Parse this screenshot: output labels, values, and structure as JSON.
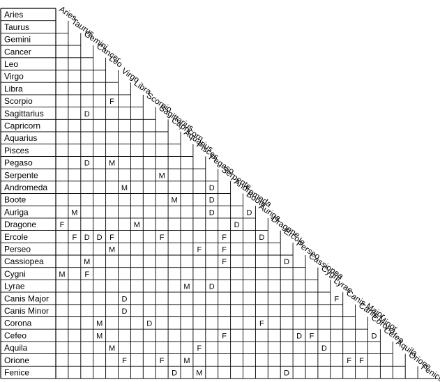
{
  "constellations": [
    "Aries",
    "Taurus",
    "Gemini",
    "Cancer",
    "Leo",
    "Virgo",
    "Libra",
    "Scorpio",
    "Sagittarius",
    "Capricorn",
    "Aquarius",
    "Pisces",
    "Pegaso",
    "Serpente",
    "Andromeda",
    "Boote",
    "Auriga",
    "Dragone",
    "Ercole",
    "Perseo",
    "Cassiopea",
    "Cygni",
    "Lyrae",
    "Canis Major",
    "Canis Minor",
    "Corona",
    "Cefeo",
    "Aquila",
    "Orione",
    "Fenice"
  ],
  "marks": [
    {
      "row": "Scorpio",
      "col": "Leo",
      "value": "F"
    },
    {
      "row": "Sagittarius",
      "col": "Gemini",
      "value": "D"
    },
    {
      "row": "Pegaso",
      "col": "Gemini",
      "value": "D"
    },
    {
      "row": "Pegaso",
      "col": "Leo",
      "value": "M"
    },
    {
      "row": "Serpente",
      "col": "Sagittarius",
      "value": "M"
    },
    {
      "row": "Andromeda",
      "col": "Virgo",
      "value": "M"
    },
    {
      "row": "Andromeda",
      "col": "Pegaso",
      "value": "D"
    },
    {
      "row": "Boote",
      "col": "Capricorn",
      "value": "M"
    },
    {
      "row": "Boote",
      "col": "Pegaso",
      "value": "D"
    },
    {
      "row": "Auriga",
      "col": "Taurus",
      "value": "M"
    },
    {
      "row": "Auriga",
      "col": "Pegaso",
      "value": "D"
    },
    {
      "row": "Auriga",
      "col": "Boote",
      "value": "D"
    },
    {
      "row": "Dragone",
      "col": "Aries",
      "value": "F"
    },
    {
      "row": "Dragone",
      "col": "Libra",
      "value": "M"
    },
    {
      "row": "Dragone",
      "col": "Andromeda",
      "value": "D"
    },
    {
      "row": "Ercole",
      "col": "Taurus",
      "value": "F"
    },
    {
      "row": "Ercole",
      "col": "Gemini",
      "value": "D"
    },
    {
      "row": "Ercole",
      "col": "Cancer",
      "value": "D"
    },
    {
      "row": "Ercole",
      "col": "Leo",
      "value": "F"
    },
    {
      "row": "Ercole",
      "col": "Sagittarius",
      "value": "F"
    },
    {
      "row": "Ercole",
      "col": "Serpente",
      "value": "F"
    },
    {
      "row": "Ercole",
      "col": "Auriga",
      "value": "D"
    },
    {
      "row": "Perseo",
      "col": "Leo",
      "value": "M"
    },
    {
      "row": "Perseo",
      "col": "Pisces",
      "value": "F"
    },
    {
      "row": "Perseo",
      "col": "Serpente",
      "value": "F"
    },
    {
      "row": "Cassiopea",
      "col": "Gemini",
      "value": "M"
    },
    {
      "row": "Cassiopea",
      "col": "Serpente",
      "value": "F"
    },
    {
      "row": "Cassiopea",
      "col": "Ercole",
      "value": "D"
    },
    {
      "row": "Cygni",
      "col": "Aries",
      "value": "M"
    },
    {
      "row": "Cygni",
      "col": "Gemini",
      "value": "F"
    },
    {
      "row": "Lyrae",
      "col": "Aquarius",
      "value": "M"
    },
    {
      "row": "Lyrae",
      "col": "Pegaso",
      "value": "D"
    },
    {
      "row": "Canis Major",
      "col": "Virgo",
      "value": "D"
    },
    {
      "row": "Canis Major",
      "col": "Lyrae",
      "value": "F"
    },
    {
      "row": "Canis Minor",
      "col": "Virgo",
      "value": "D"
    },
    {
      "row": "Corona",
      "col": "Cancer",
      "value": "M"
    },
    {
      "row": "Corona",
      "col": "Scorpio",
      "value": "D"
    },
    {
      "row": "Corona",
      "col": "Auriga",
      "value": "F"
    },
    {
      "row": "Cefeo",
      "col": "Cancer",
      "value": "M"
    },
    {
      "row": "Cefeo",
      "col": "Serpente",
      "value": "F"
    },
    {
      "row": "Cefeo",
      "col": "Perseo",
      "value": "D"
    },
    {
      "row": "Cefeo",
      "col": "Cassiopea",
      "value": "F"
    },
    {
      "row": "Cefeo",
      "col": "Corona",
      "value": "D"
    },
    {
      "row": "Aquila",
      "col": "Leo",
      "value": "M"
    },
    {
      "row": "Aquila",
      "col": "Pisces",
      "value": "F"
    },
    {
      "row": "Aquila",
      "col": "Cygni",
      "value": "D"
    },
    {
      "row": "Orione",
      "col": "Virgo",
      "value": "F"
    },
    {
      "row": "Orione",
      "col": "Sagittarius",
      "value": "F"
    },
    {
      "row": "Orione",
      "col": "Aquarius",
      "value": "M"
    },
    {
      "row": "Orione",
      "col": "Canis Major",
      "value": "F"
    },
    {
      "row": "Orione",
      "col": "Canis Minor",
      "value": "F"
    },
    {
      "row": "Fenice",
      "col": "Capricorn",
      "value": "D"
    },
    {
      "row": "Fenice",
      "col": "Pisces",
      "value": "M"
    },
    {
      "row": "Fenice",
      "col": "Ercole",
      "value": "D"
    }
  ]
}
